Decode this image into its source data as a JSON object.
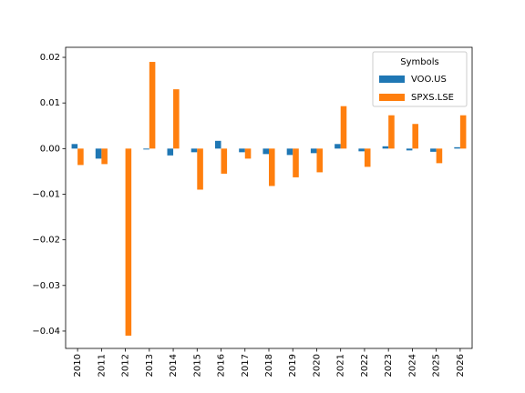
{
  "chart_data": {
    "type": "bar",
    "categories": [
      "2010",
      "2011",
      "2012",
      "2013",
      "2014",
      "2015",
      "2016",
      "2017",
      "2018",
      "2019",
      "2020",
      "2021",
      "2022",
      "2023",
      "2024",
      "2025",
      "2026"
    ],
    "series": [
      {
        "name": "VOO.US",
        "color": "#1f77b4",
        "values": [
          0.001,
          -0.0022,
          0.0,
          -0.0002,
          -0.0015,
          -0.0008,
          0.0017,
          -0.0008,
          -0.0012,
          -0.0014,
          -0.001,
          0.001,
          -0.0006,
          0.0005,
          -0.0004,
          -0.0007,
          0.0003
        ]
      },
      {
        "name": "SPXS.LSE",
        "color": "#ff7f0e",
        "values": [
          -0.0036,
          -0.0034,
          -0.041,
          0.019,
          0.013,
          -0.009,
          -0.0055,
          -0.0022,
          -0.0082,
          -0.0063,
          -0.0052,
          0.0093,
          -0.004,
          0.0073,
          0.0054,
          -0.0032,
          0.0073
        ]
      }
    ],
    "legend_title": "Symbols",
    "legend_position": "upper right",
    "ylim": [
      -0.0438,
      0.0222
    ],
    "yticks": [
      {
        "value": -0.04,
        "label": "−0.04"
      },
      {
        "value": -0.03,
        "label": "−0.03"
      },
      {
        "value": -0.02,
        "label": "−0.02"
      },
      {
        "value": -0.01,
        "label": "−0.01"
      },
      {
        "value": 0.0,
        "label": "0.00"
      },
      {
        "value": 0.01,
        "label": "0.01"
      },
      {
        "value": 0.02,
        "label": "0.02"
      }
    ],
    "grid": false
  }
}
